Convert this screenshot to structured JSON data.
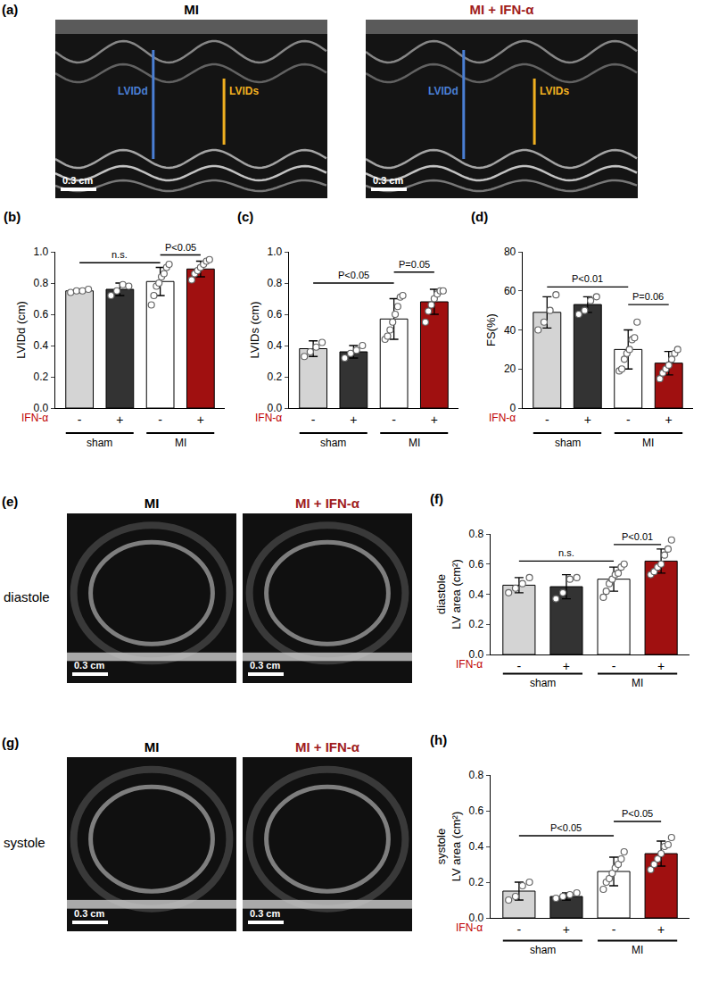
{
  "images": [
    {
      "panel": "(a)",
      "items": [
        {
          "title": "MI",
          "color": "#000000",
          "markers": [
            {
              "label": "LVIDd",
              "color": "#4a7fd4"
            },
            {
              "label": "LVIDs",
              "color": "#f0b020"
            }
          ],
          "scale": "0.3 cm"
        },
        {
          "title": "MI + IFN-α",
          "color": "#a01c1c",
          "markers": [
            {
              "label": "LVIDd",
              "color": "#4a7fd4"
            },
            {
              "label": "LVIDs",
              "color": "#f0b020"
            }
          ],
          "scale": "0.3 cm"
        }
      ]
    },
    {
      "panel": "(e)",
      "row_label": "diastole",
      "items": [
        {
          "title": "MI",
          "color": "#000000",
          "scale": "0.3 cm"
        },
        {
          "title": "MI + IFN-α",
          "color": "#a01c1c",
          "scale": "0.3 cm"
        }
      ]
    },
    {
      "panel": "(g)",
      "row_label": "systole",
      "items": [
        {
          "title": "MI",
          "color": "#000000",
          "scale": "0.3 cm"
        },
        {
          "title": "MI + IFN-α",
          "color": "#a01c1c",
          "scale": "0.3 cm"
        }
      ]
    }
  ],
  "chart_data": [
    {
      "type": "bar",
      "panel": "(b)",
      "ylabel": [
        "LVIDd (cm)"
      ],
      "categories": [
        "-",
        "+",
        "-",
        "+"
      ],
      "category_label": "IFN-α",
      "category_label_color": "#c00000",
      "groups": [
        {
          "label": "sham",
          "span": [
            0,
            1
          ]
        },
        {
          "label": "MI",
          "span": [
            2,
            3
          ]
        }
      ],
      "colors": [
        "#d4d4d4",
        "#333333",
        "#ffffff",
        "#a01010"
      ],
      "values": [
        0.75,
        0.76,
        0.81,
        0.89
      ],
      "errors": [
        0.01,
        0.04,
        0.09,
        0.05
      ],
      "points": [
        [
          0.74,
          0.75,
          0.75,
          0.76
        ],
        [
          0.72,
          0.75,
          0.79,
          0.78
        ],
        [
          0.66,
          0.72,
          0.78,
          0.8,
          0.84,
          0.86,
          0.9,
          0.92
        ],
        [
          0.82,
          0.86,
          0.88,
          0.9,
          0.92,
          0.94,
          0.95
        ]
      ],
      "ylim": [
        0,
        1.0
      ],
      "yticks": [
        {
          "value": 0,
          "label": "0.0"
        },
        0.2,
        0.4,
        0.6,
        0.8,
        {
          "value": 1.0,
          "label": "1.0"
        }
      ],
      "comparisons": [
        {
          "between": [
            0,
            2
          ],
          "y": 0.93,
          "label": "n.s."
        },
        {
          "between": [
            2,
            3
          ],
          "y": 0.98,
          "label": "P<0.05"
        }
      ]
    },
    {
      "type": "bar",
      "panel": "(c)",
      "ylabel": [
        "LVIDs (cm)"
      ],
      "categories": [
        "-",
        "+",
        "-",
        "+"
      ],
      "category_label": "IFN-α",
      "category_label_color": "#c00000",
      "groups": [
        {
          "label": "sham",
          "span": [
            0,
            1
          ]
        },
        {
          "label": "MI",
          "span": [
            2,
            3
          ]
        }
      ],
      "colors": [
        "#d4d4d4",
        "#333333",
        "#ffffff",
        "#a01010"
      ],
      "values": [
        0.38,
        0.36,
        0.57,
        0.68
      ],
      "errors": [
        0.05,
        0.04,
        0.13,
        0.08
      ],
      "points": [
        [
          0.33,
          0.36,
          0.39,
          0.42
        ],
        [
          0.32,
          0.35,
          0.37,
          0.4
        ],
        [
          0.44,
          0.46,
          0.5,
          0.55,
          0.6,
          0.65,
          0.71,
          0.72
        ],
        [
          0.55,
          0.62,
          0.66,
          0.7,
          0.73,
          0.75,
          0.75
        ]
      ],
      "ylim": [
        0,
        1.0
      ],
      "yticks": [
        {
          "value": 0,
          "label": "0.0"
        },
        0.2,
        0.4,
        0.6,
        0.8,
        {
          "value": 1.0,
          "label": "1.0"
        }
      ],
      "comparisons": [
        {
          "between": [
            0,
            2
          ],
          "y": 0.8,
          "label": "P<0.05"
        },
        {
          "between": [
            2,
            3
          ],
          "y": 0.87,
          "label": "P=0.05"
        }
      ]
    },
    {
      "type": "bar",
      "panel": "(d)",
      "ylabel": [
        "FS(%)"
      ],
      "categories": [
        "-",
        "+",
        "-",
        "+"
      ],
      "category_label": "IFN-α",
      "category_label_color": "#c00000",
      "groups": [
        {
          "label": "sham",
          "span": [
            0,
            1
          ]
        },
        {
          "label": "MI",
          "span": [
            2,
            3
          ]
        }
      ],
      "colors": [
        "#d4d4d4",
        "#333333",
        "#ffffff",
        "#a01010"
      ],
      "values": [
        49,
        53,
        30,
        23
      ],
      "errors": [
        8,
        4,
        10,
        6
      ],
      "points": [
        [
          40,
          44,
          50,
          58
        ],
        [
          48,
          50,
          55,
          57
        ],
        [
          19,
          20,
          25,
          28,
          30,
          35,
          36,
          44
        ],
        [
          15,
          18,
          20,
          22,
          25,
          28,
          30
        ]
      ],
      "ylim": [
        0,
        80
      ],
      "yticks": [
        0,
        20,
        40,
        60,
        80
      ],
      "comparisons": [
        {
          "between": [
            0,
            2
          ],
          "y": 62,
          "label": "P<0.01"
        },
        {
          "between": [
            2,
            3
          ],
          "y": 53,
          "label": "P=0.06"
        }
      ]
    },
    {
      "type": "bar",
      "panel": "(f)",
      "ylabel": [
        "diastole",
        "LV area (cm²)"
      ],
      "categories": [
        "-",
        "+",
        "-",
        "+"
      ],
      "category_label": "IFN-α",
      "category_label_color": "#c00000",
      "groups": [
        {
          "label": "sham",
          "span": [
            0,
            1
          ]
        },
        {
          "label": "MI",
          "span": [
            2,
            3
          ]
        }
      ],
      "colors": [
        "#d4d4d4",
        "#333333",
        "#ffffff",
        "#a01010"
      ],
      "values": [
        0.46,
        0.45,
        0.5,
        0.62
      ],
      "errors": [
        0.05,
        0.08,
        0.08,
        0.08
      ],
      "points": [
        [
          0.41,
          0.44,
          0.47,
          0.51
        ],
        [
          0.37,
          0.41,
          0.5,
          0.51
        ],
        [
          0.38,
          0.42,
          0.47,
          0.5,
          0.53,
          0.54,
          0.58,
          0.6
        ],
        [
          0.53,
          0.55,
          0.58,
          0.6,
          0.66,
          0.7,
          0.76
        ]
      ],
      "ylim": [
        0,
        0.8
      ],
      "yticks": [
        {
          "value": 0,
          "label": "0.0"
        },
        0.2,
        0.4,
        0.6,
        0.8
      ],
      "comparisons": [
        {
          "between": [
            0,
            2
          ],
          "y": 0.62,
          "label": "n.s."
        },
        {
          "between": [
            2,
            3
          ],
          "y": 0.73,
          "label": "P<0.01"
        }
      ]
    },
    {
      "type": "bar",
      "panel": "(h)",
      "ylabel": [
        "systole",
        "LV area (cm²)"
      ],
      "categories": [
        "-",
        "+",
        "-",
        "+"
      ],
      "category_label": "IFN-α",
      "category_label_color": "#c00000",
      "groups": [
        {
          "label": "sham",
          "span": [
            0,
            1
          ]
        },
        {
          "label": "MI",
          "span": [
            2,
            3
          ]
        }
      ],
      "colors": [
        "#d4d4d4",
        "#333333",
        "#ffffff",
        "#a01010"
      ],
      "values": [
        0.15,
        0.12,
        0.26,
        0.36
      ],
      "errors": [
        0.05,
        0.02,
        0.08,
        0.07
      ],
      "points": [
        [
          0.1,
          0.12,
          0.18,
          0.2
        ],
        [
          0.11,
          0.12,
          0.13,
          0.14
        ],
        [
          0.16,
          0.2,
          0.22,
          0.25,
          0.28,
          0.3,
          0.33,
          0.37
        ],
        [
          0.27,
          0.3,
          0.33,
          0.36,
          0.4,
          0.41,
          0.45
        ]
      ],
      "ylim": [
        0,
        0.8
      ],
      "yticks": [
        {
          "value": 0,
          "label": "0.0"
        },
        0.2,
        0.4,
        0.6,
        0.8
      ],
      "comparisons": [
        {
          "between": [
            0,
            2
          ],
          "y": 0.46,
          "label": "P<0.05"
        },
        {
          "between": [
            2,
            3
          ],
          "y": 0.54,
          "label": "P<0.05"
        }
      ]
    }
  ]
}
